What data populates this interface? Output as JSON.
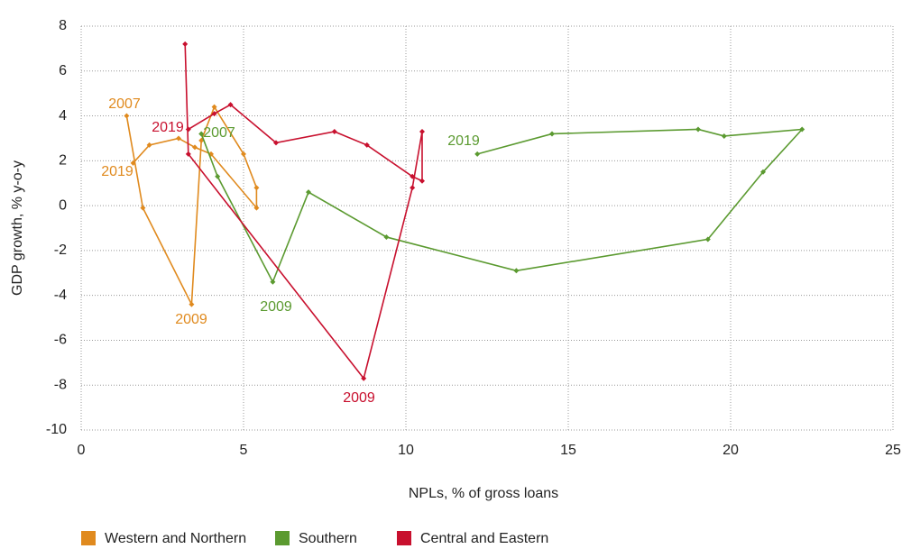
{
  "chart_data": {
    "type": "line",
    "xlabel": "NPLs, % of gross loans",
    "ylabel": "GDP growth, % y-o-y",
    "xlim": [
      0,
      25
    ],
    "xticks": [
      0,
      5,
      10,
      15,
      20,
      25
    ],
    "ylim": [
      -10,
      8
    ],
    "yticks": [
      -10,
      -8,
      -6,
      -4,
      -2,
      0,
      2,
      4,
      6,
      8
    ],
    "grid": true,
    "legend": "bottom",
    "series": [
      {
        "name": "Western and Northern",
        "color": "#e08a1e",
        "x": [
          1.4,
          1.9,
          3.4,
          3.7,
          4.1,
          5.0,
          5.4,
          5.4,
          4.0,
          3.5,
          3.0,
          2.1,
          1.6
        ],
        "y": [
          4.0,
          -0.1,
          -4.4,
          2.9,
          4.4,
          2.3,
          0.8,
          -0.1,
          2.3,
          2.6,
          3.0,
          2.7,
          1.9
        ]
      },
      {
        "name": "Southern",
        "color": "#5b9a30",
        "x": [
          3.7,
          4.2,
          5.9,
          7.0,
          9.4,
          13.4,
          19.3,
          21.0,
          22.2,
          19.8,
          19.0,
          14.5,
          12.2
        ],
        "y": [
          3.2,
          1.3,
          -3.4,
          0.6,
          -1.4,
          -2.9,
          -1.5,
          1.5,
          3.4,
          3.1,
          3.4,
          3.2,
          2.3
        ]
      },
      {
        "name": "Central and Eastern",
        "color": "#c8102e",
        "x": [
          3.2,
          3.3,
          8.7,
          10.2,
          10.5,
          10.5,
          10.2,
          8.8,
          7.8,
          6.0,
          4.6,
          4.1,
          3.3
        ],
        "y": [
          7.2,
          2.3,
          -7.7,
          0.8,
          3.3,
          1.1,
          1.3,
          2.7,
          3.3,
          2.8,
          4.5,
          4.1,
          3.4
        ]
      }
    ],
    "annotations": [
      {
        "text": "2007",
        "color": "#e08a1e"
      },
      {
        "text": "2019",
        "color": "#e08a1e"
      },
      {
        "text": "2009",
        "color": "#e08a1e"
      },
      {
        "text": "2007",
        "color": "#5b9a30"
      },
      {
        "text": "2009",
        "color": "#5b9a30"
      },
      {
        "text": "2019",
        "color": "#5b9a30"
      },
      {
        "text": "2019",
        "color": "#c8102e"
      },
      {
        "text": "2009",
        "color": "#c8102e"
      }
    ]
  }
}
